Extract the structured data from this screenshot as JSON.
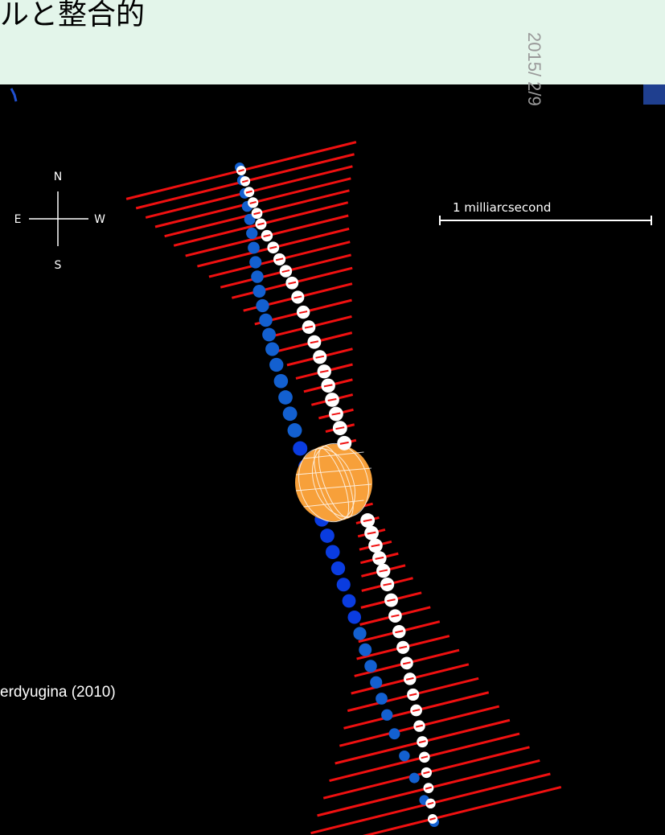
{
  "title": "ルと整合的",
  "date": "2015/ 2/9",
  "figure": {
    "compass": {
      "north": "N",
      "east": "E",
      "west": "W",
      "south": "S"
    },
    "scale_label": "1 milliarcsecond",
    "credit": "erdyugina (2010)"
  }
}
